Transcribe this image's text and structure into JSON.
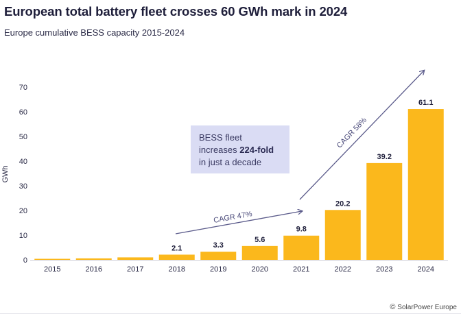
{
  "header": {
    "title": "European total battery fleet crosses 60 GWh mark in 2024",
    "subtitle": "Europe cumulative BESS capacity 2015-2024"
  },
  "footer": {
    "copyright_symbol": "©",
    "source": "SolarPower Europe"
  },
  "annotations": {
    "callout": {
      "line1": "BESS fleet",
      "line2_pre": "increases ",
      "line2_bold": "224-fold",
      "line3": "in just a decade"
    },
    "cagr_1": "CAGR 47%",
    "cagr_2": "CAGR 58%"
  },
  "colors": {
    "bar": "#fbb81c",
    "arrow": "#5a5a8a",
    "callout_bg": "#dadcf4",
    "text": "#1e1e3a"
  },
  "chart_data": {
    "type": "bar",
    "title": "European total battery fleet crosses 60 GWh mark in 2024",
    "subtitle": "Europe cumulative BESS capacity 2015-2024",
    "xlabel": "",
    "ylabel": "GWh",
    "categories": [
      "2015",
      "2016",
      "2017",
      "2018",
      "2019",
      "2020",
      "2021",
      "2022",
      "2023",
      "2024"
    ],
    "values": [
      0.3,
      0.6,
      1.0,
      2.1,
      3.3,
      5.6,
      9.8,
      20.2,
      39.2,
      61.1
    ],
    "data_labels": [
      "",
      "",
      "",
      "2.1",
      "3.3",
      "5.6",
      "9.8",
      "20.2",
      "39.2",
      "61.1"
    ],
    "y_ticks": [
      0,
      10,
      20,
      30,
      40,
      50,
      60,
      70
    ],
    "ylim": [
      0,
      70
    ],
    "grid": false,
    "legend": "none",
    "bar_color": "#fbb81c"
  }
}
